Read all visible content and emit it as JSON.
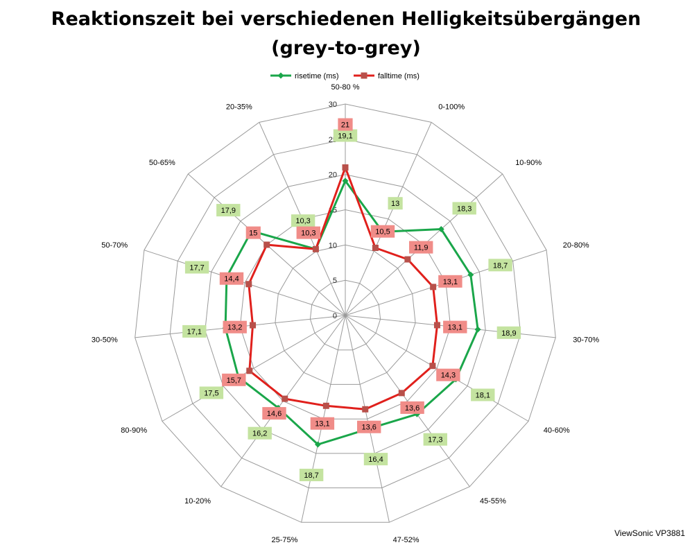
{
  "chart_data": {
    "type": "radar",
    "title": [
      "Reaktionszeit bei verschiedenen Helligkeitsübergängen",
      "(grey-to-grey)"
    ],
    "categories": [
      "50-80 %",
      "0-100%",
      "10-90%",
      "20-80%",
      "30-70%",
      "40-60%",
      "45-55%",
      "47-52%",
      "25-75%",
      "10-20%",
      "80-90%",
      "30-50%",
      "50-70%",
      "50-65%",
      "20-35%"
    ],
    "series": [
      {
        "name": "risetime (ms)",
        "color": "#1aa64a",
        "values": [
          19.1,
          13,
          18.3,
          18.7,
          18.9,
          18.1,
          17.3,
          16.4,
          18.7,
          16.2,
          17.5,
          17.1,
          17.7,
          17.9,
          10.3
        ],
        "labels": [
          "19,1",
          "13",
          "18,3",
          "18,7",
          "18,9",
          "18,1",
          "17,3",
          "16,4",
          "18,7",
          "16,2",
          "17,5",
          "17,1",
          "17,7",
          "17,9",
          "10,3"
        ]
      },
      {
        "name": "falltime (ms)",
        "color": "#e0201c",
        "values": [
          21,
          10.5,
          11.9,
          13.1,
          13.1,
          14.3,
          13.6,
          13.6,
          13.1,
          14.6,
          15.7,
          13.2,
          14.4,
          15,
          10.3
        ],
        "labels": [
          "21",
          "10,5",
          "11,9",
          "13,1",
          "13,1",
          "14,3",
          "13,6",
          "13,6",
          "13,1",
          "14,6",
          "15,7",
          "13,2",
          "14,4",
          "15",
          "10,3"
        ]
      }
    ],
    "rmin": 0,
    "rmax": 30,
    "ticks": [
      0,
      5,
      10,
      15,
      20,
      25,
      30
    ],
    "grid": true,
    "legend_position": "top"
  },
  "brand": "ViewSonic VP3881"
}
